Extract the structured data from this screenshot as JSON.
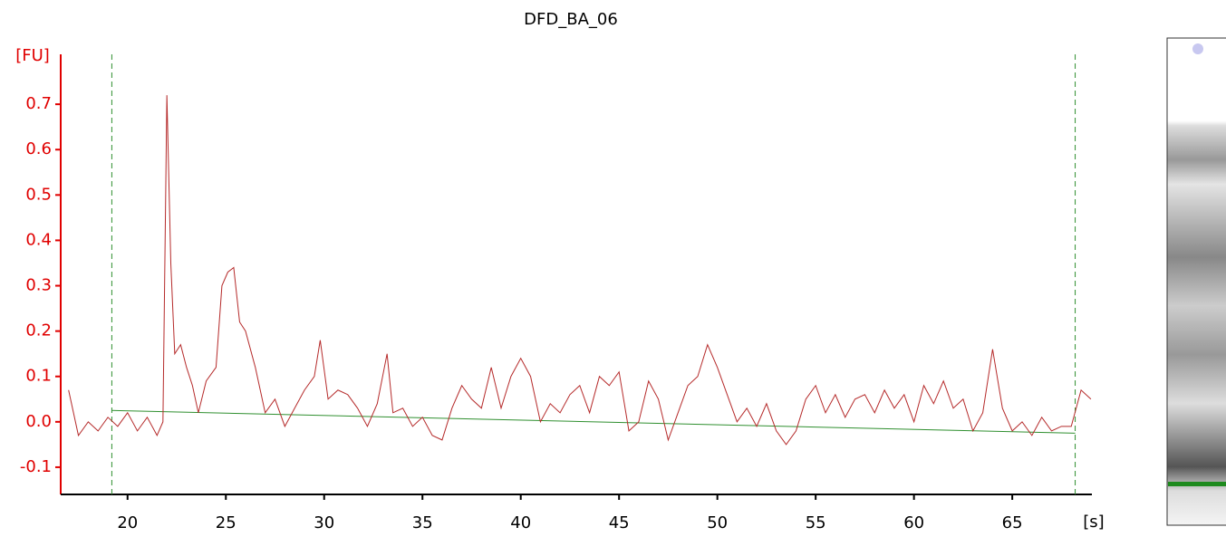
{
  "chart_data": {
    "type": "line",
    "title": "DFD_BA_06",
    "ylabel": "[FU]",
    "xlabel": "[s]",
    "x": [
      17,
      17.5,
      18,
      18.5,
      19,
      19.5,
      20,
      20.5,
      21,
      21.5,
      21.8,
      22,
      22.2,
      22.4,
      22.7,
      23,
      23.3,
      23.6,
      24,
      24.5,
      24.8,
      25.1,
      25.4,
      25.7,
      26,
      26.5,
      27,
      27.5,
      28,
      28.5,
      29,
      29.5,
      29.8,
      30.2,
      30.7,
      31.2,
      31.7,
      32.2,
      32.7,
      33.2,
      33.5,
      34,
      34.5,
      35,
      35.5,
      36,
      36.5,
      37,
      37.5,
      38,
      38.5,
      39,
      39.5,
      40,
      40.5,
      41,
      41.5,
      42,
      42.5,
      43,
      43.5,
      44,
      44.5,
      45,
      45.5,
      46,
      46.5,
      47,
      47.5,
      48,
      48.5,
      49,
      49.5,
      50,
      50.5,
      51,
      51.5,
      52,
      52.5,
      53,
      53.5,
      54,
      54.5,
      55,
      55.5,
      56,
      56.5,
      57,
      57.5,
      58,
      58.5,
      59,
      59.5,
      60,
      60.5,
      61,
      61.5,
      62,
      62.5,
      63,
      63.5,
      64,
      64.5,
      65,
      65.5,
      66,
      66.5,
      67,
      67.5,
      68,
      68.5,
      69
    ],
    "series": [
      {
        "color": "#b52a2a",
        "values": [
          0.07,
          -0.03,
          0.0,
          -0.02,
          0.01,
          -0.01,
          0.02,
          -0.02,
          0.01,
          -0.03,
          0.0,
          0.72,
          0.35,
          0.15,
          0.17,
          0.12,
          0.08,
          0.02,
          0.09,
          0.12,
          0.3,
          0.33,
          0.34,
          0.22,
          0.2,
          0.12,
          0.02,
          0.05,
          -0.01,
          0.03,
          0.07,
          0.1,
          0.18,
          0.05,
          0.07,
          0.06,
          0.03,
          -0.01,
          0.04,
          0.15,
          0.02,
          0.03,
          -0.01,
          0.01,
          -0.03,
          -0.04,
          0.03,
          0.08,
          0.05,
          0.03,
          0.12,
          0.03,
          0.1,
          0.14,
          0.1,
          0.0,
          0.04,
          0.02,
          0.06,
          0.08,
          0.02,
          0.1,
          0.08,
          0.11,
          -0.02,
          0.0,
          0.09,
          0.05,
          -0.04,
          0.02,
          0.08,
          0.1,
          0.17,
          0.12,
          0.06,
          0.0,
          0.03,
          -0.01,
          0.04,
          -0.02,
          -0.05,
          -0.02,
          0.05,
          0.08,
          0.02,
          0.06,
          0.01,
          0.05,
          0.06,
          0.02,
          0.07,
          0.03,
          0.06,
          0.0,
          0.08,
          0.04,
          0.09,
          0.03,
          0.05,
          -0.02,
          0.02,
          0.16,
          0.03,
          -0.02,
          0.0,
          -0.03,
          0.01,
          -0.02,
          -0.01,
          -0.01,
          0.07,
          0.05
        ]
      }
    ],
    "baseline": {
      "color": "#2f8f2f",
      "x": [
        19.2,
        68.2
      ],
      "values": [
        0.025,
        -0.025
      ]
    },
    "markers": [
      19.2,
      68.2
    ],
    "xlim": [
      16.6,
      69.05
    ],
    "ylim": [
      -0.16,
      0.81
    ],
    "xticks": [
      20,
      25,
      30,
      35,
      40,
      45,
      50,
      55,
      60,
      65
    ],
    "yticks": [
      -0.1,
      {
        "value": 0,
        "label": "0.0"
      },
      0.1,
      0.2,
      0.3,
      0.4,
      0.5,
      0.6,
      0.7
    ]
  }
}
